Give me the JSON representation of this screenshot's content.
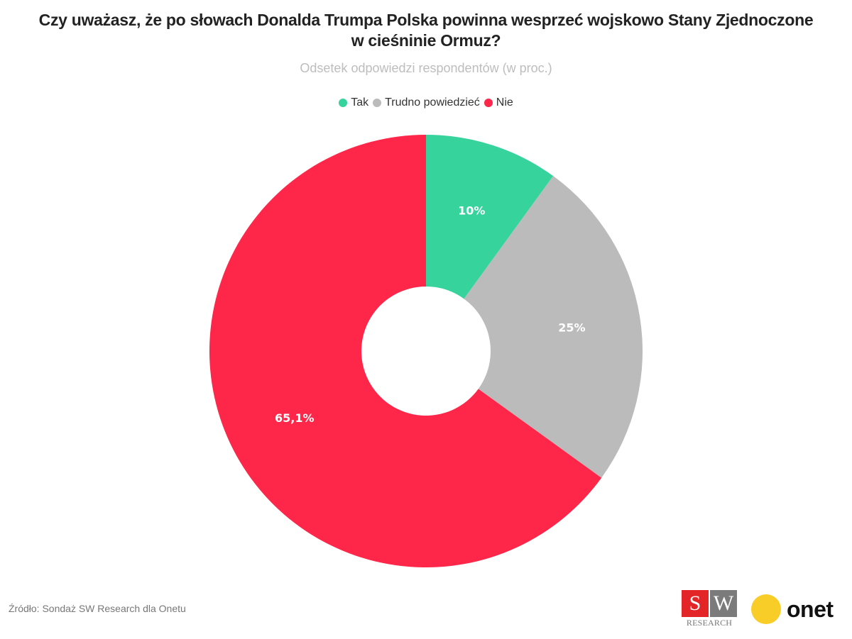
{
  "chart_data": {
    "type": "pie",
    "variant": "donut",
    "title": "Czy uważasz, że po słowach Donalda Trumpa Polska powinna wesprzeć wojskowo Stany Zjednoczone w cieśninie Ormuz?",
    "title_line1": "Czy uważasz, że po słowach Donalda Trumpa Polska powinna wesprzeć wojskowo Stany Zjednoczone",
    "title_line2": "w cieśninie Ormuz?",
    "subtitle": "Odsetek odpowiedzi respondentów (w proc.)",
    "legend_position": "top-center",
    "unit": "%",
    "slices": [
      {
        "name": "Tak",
        "value": 10,
        "label": "10%",
        "color": "#36d39d"
      },
      {
        "name": "Trudno powiedzieć",
        "value": 25,
        "label": "25%",
        "color": "#bbbbbb"
      },
      {
        "name": "Nie",
        "value": 65.1,
        "label": "65,1%",
        "color": "#fe2649"
      }
    ]
  },
  "legend": {
    "items": [
      {
        "label": "Tak",
        "color": "#36d39d"
      },
      {
        "label": "Trudno powiedzieć",
        "color": "#bbbbbb"
      },
      {
        "label": "Nie",
        "color": "#fe2649"
      }
    ]
  },
  "footer": {
    "source": "Źródło: Sondaż SW Research dla Onetu",
    "sw_logo": {
      "s": "S",
      "w": "W",
      "research": "RESEARCH"
    },
    "onet_logo": "onet"
  }
}
